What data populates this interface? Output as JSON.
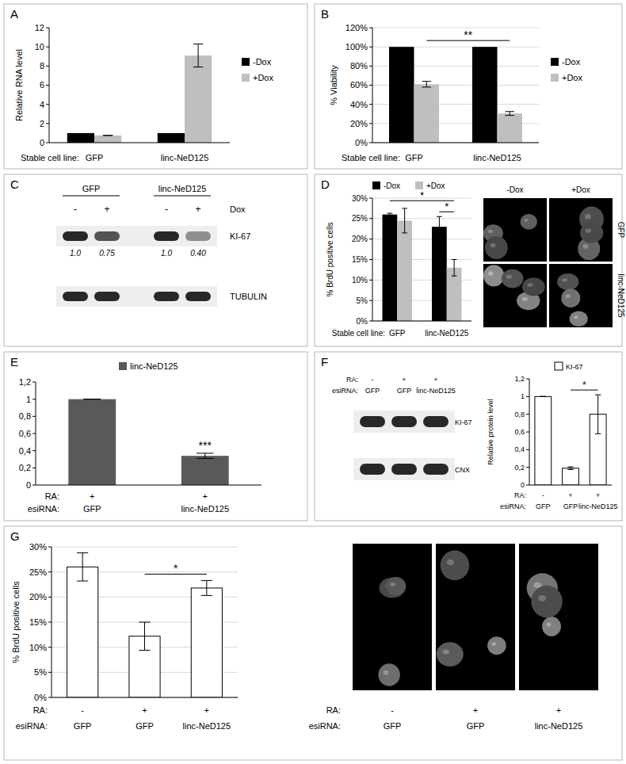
{
  "chart_data": [
    {
      "type": "bar",
      "panel": "A",
      "ylabel": "Relative RNA level",
      "xlabel": "Stable cell line:",
      "categories": [
        "GFP",
        "linc-NeD125"
      ],
      "series": [
        {
          "name": "-Dox",
          "color": "#000000",
          "values": [
            1,
            1
          ]
        },
        {
          "name": "+Dox",
          "color": "#bfbfbf",
          "values": [
            0.75,
            9.1
          ],
          "errors": [
            0,
            1.2
          ]
        }
      ],
      "ylim": [
        0,
        12
      ],
      "yticks": [
        0,
        2,
        4,
        6,
        8,
        10,
        12
      ],
      "grid": false,
      "legend": "right"
    },
    {
      "type": "bar",
      "panel": "B",
      "ylabel": "% Viability",
      "xlabel": "Stable cell line:",
      "categories": [
        "GFP",
        "linc-NeD125"
      ],
      "series": [
        {
          "name": "-Dox",
          "color": "#000000",
          "values": [
            100,
            100
          ]
        },
        {
          "name": "+Dox",
          "color": "#bfbfbf",
          "values": [
            61,
            30.5
          ],
          "errors": [
            3,
            2
          ]
        }
      ],
      "ylim": [
        0,
        120
      ],
      "yticks": [
        {
          "value": 0,
          "label": "0%"
        },
        {
          "value": 20,
          "label": "20%"
        },
        {
          "value": 40,
          "label": "40%"
        },
        {
          "value": 60,
          "label": "60%"
        },
        {
          "value": 80,
          "label": "80%"
        },
        {
          "value": 100,
          "label": "100%"
        },
        {
          "value": 120,
          "label": "120%"
        }
      ],
      "grid": true,
      "legend": "right",
      "annotations": [
        {
          "text": "**",
          "from": {
            "series": 1,
            "category": 0
          },
          "to": {
            "series": 1,
            "category": 1
          }
        }
      ]
    },
    {
      "type": "blot",
      "panel": "C",
      "groups": [
        "GFP",
        "linc-NeD125"
      ],
      "condition_label": "Dox",
      "conditions": [
        "-",
        "+",
        "-",
        "+"
      ],
      "bands": [
        {
          "label": "KI-67",
          "values": [
            1,
            0.75,
            1,
            0.4
          ],
          "value_labels": [
            "1.0",
            "0.75",
            "1.0",
            "0.40"
          ]
        },
        {
          "label": "TUBULIN"
        }
      ]
    },
    {
      "type": "bar",
      "panel": "D",
      "ylabel": "% BrdU positive cells",
      "xlabel": "Stable cell line:",
      "categories": [
        "GFP",
        "linc-NeD125"
      ],
      "series": [
        {
          "name": "-Dox",
          "color": "#000000",
          "values": [
            26,
            23
          ],
          "errors": [
            0.3,
            2.5
          ]
        },
        {
          "name": "+Dox",
          "color": "#bfbfbf",
          "values": [
            24.5,
            13
          ],
          "errors": [
            3,
            2
          ]
        }
      ],
      "ylim": [
        0,
        30
      ],
      "yticks": [
        {
          "value": 0,
          "label": "0%"
        },
        {
          "value": 5,
          "label": "5%"
        },
        {
          "value": 10,
          "label": "10%"
        },
        {
          "value": 15,
          "label": "15%"
        },
        {
          "value": 20,
          "label": "20%"
        },
        {
          "value": 25,
          "label": "25%"
        },
        {
          "value": 30,
          "label": "30%"
        }
      ],
      "grid": true,
      "legend": "top",
      "annotations": [
        {
          "text": "*",
          "from": {
            "series": 0,
            "category": 0
          },
          "to": {
            "series": 1,
            "category": 1
          }
        },
        {
          "text": "*",
          "from": {
            "series": 0,
            "category": 1
          },
          "to": {
            "series": 1,
            "category": 1
          }
        }
      ]
    },
    {
      "type": "micrograph",
      "panel": "D",
      "columns": [
        "-Dox",
        "+Dox"
      ],
      "rows": [
        "GFP",
        "linc-NeD125"
      ]
    },
    {
      "type": "bar",
      "panel": "E",
      "xlabel": "esiRNA:",
      "x_rows": [
        {
          "label": "RA:",
          "values": [
            "+",
            "+"
          ]
        }
      ],
      "categories": [
        "GFP",
        "linc-NeD125"
      ],
      "series": [
        {
          "name": "linc-NeD125",
          "color": "#595959",
          "values": [
            1,
            0.34
          ],
          "errors": [
            0,
            0.03
          ]
        }
      ],
      "ylim": [
        0,
        1.2
      ],
      "yticks": [
        0,
        {
          "value": 0.2,
          "label": "0,2"
        },
        {
          "value": 0.4,
          "label": "0,4"
        },
        {
          "value": 0.6,
          "label": "0,6"
        },
        {
          "value": 0.8,
          "label": "0,8"
        },
        1,
        {
          "value": 1.2,
          "label": "1,2"
        }
      ],
      "grid": false,
      "legend": "top",
      "annotations": [
        {
          "text": "***",
          "at": {
            "series": 0,
            "category": 1
          }
        }
      ]
    },
    {
      "type": "blot",
      "panel": "F",
      "x_rows": [
        {
          "label": "RA:",
          "values": [
            "-",
            "+",
            "+"
          ]
        },
        {
          "label": "esiRNA:",
          "values": [
            "GFP",
            "GFP",
            "linc-NeD125"
          ]
        }
      ],
      "bands": [
        {
          "label": "KI-67"
        },
        {
          "label": "CNX"
        }
      ]
    },
    {
      "type": "bar",
      "panel": "F",
      "ylabel": "Relative protein level",
      "xlabel": "esiRNA:",
      "x_rows": [
        {
          "label": "RA:",
          "values": [
            "-",
            "+",
            "+"
          ]
        }
      ],
      "categories": [
        "GFP",
        "GFP",
        "linc-NeD125"
      ],
      "series": [
        {
          "name": "KI-67",
          "color": "#ffffff",
          "values": [
            1,
            0.19,
            0.8
          ],
          "errors": [
            0,
            0.015,
            0.22
          ]
        }
      ],
      "ylim": [
        0,
        1.2
      ],
      "yticks": [
        0,
        {
          "value": 0.2,
          "label": "0,2"
        },
        {
          "value": 0.4,
          "label": "0,4"
        },
        {
          "value": 0.6,
          "label": "0,6"
        },
        {
          "value": 0.8,
          "label": "0,8"
        },
        1,
        {
          "value": 1.2,
          "label": "1,2"
        }
      ],
      "grid": false,
      "legend": "top",
      "annotations": [
        {
          "text": "*",
          "from": {
            "series": 0,
            "category": 1
          },
          "to": {
            "series": 0,
            "category": 2
          }
        }
      ]
    },
    {
      "type": "bar",
      "panel": "G",
      "ylabel": "% BrdU positive cells",
      "xlabel": "esiRNA:",
      "x_rows": [
        {
          "label": "RA:",
          "values": [
            "-",
            "+",
            "+"
          ]
        }
      ],
      "categories": [
        "GFP",
        "GFP",
        "linc-NeD125"
      ],
      "series": [
        {
          "color": "#ffffff",
          "values": [
            26,
            12.2,
            21.8
          ],
          "errors": [
            2.8,
            2.8,
            1.5
          ]
        }
      ],
      "ylim": [
        0,
        30
      ],
      "yticks": [
        {
          "value": 0,
          "label": "0%"
        },
        {
          "value": 5,
          "label": "5%"
        },
        {
          "value": 10,
          "label": "10%"
        },
        {
          "value": 15,
          "label": "15%"
        },
        {
          "value": 20,
          "label": "20%"
        },
        {
          "value": 25,
          "label": "25%"
        },
        {
          "value": 30,
          "label": "30%"
        }
      ],
      "grid": true,
      "annotations": [
        {
          "text": "*",
          "from": {
            "series": 0,
            "category": 1
          },
          "to": {
            "series": 0,
            "category": 2
          }
        }
      ]
    },
    {
      "type": "micrograph",
      "panel": "G",
      "x_rows": [
        {
          "label": "RA:",
          "values": [
            "-",
            "+",
            "+"
          ]
        },
        {
          "label": "esiRNA:",
          "values": [
            "GFP",
            "GFP",
            "linc-NeD125"
          ]
        }
      ]
    }
  ]
}
